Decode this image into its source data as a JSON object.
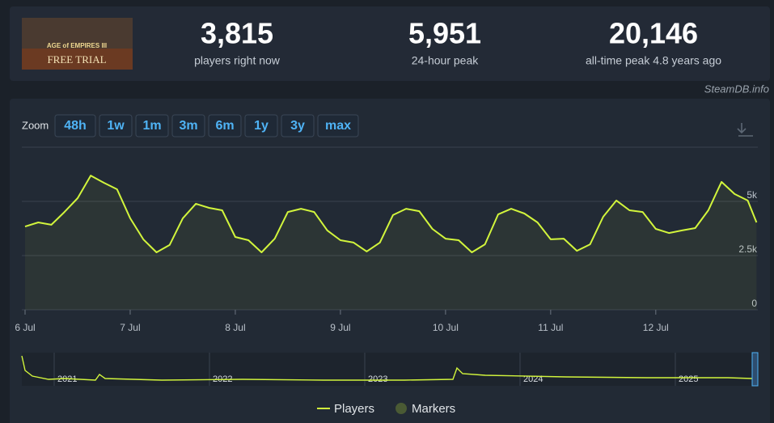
{
  "header": {
    "thumbnail": {
      "title": "AGE of EMPIRES III",
      "caption": "FREE TRIAL"
    },
    "stats": [
      {
        "value": "3,815",
        "label": "players right now"
      },
      {
        "value": "5,951",
        "label": "24-hour peak"
      },
      {
        "value": "20,146",
        "label": "all-time peak 4.8 years ago"
      }
    ],
    "source": "SteamDB.info"
  },
  "zoom": {
    "label": "Zoom",
    "options": [
      "48h",
      "1w",
      "1m",
      "3m",
      "6m",
      "1y",
      "3y",
      "max"
    ],
    "active": "1w"
  },
  "chart_data": {
    "type": "line",
    "x": [
      0,
      3,
      6,
      9,
      12,
      15,
      18,
      21,
      24,
      27,
      30,
      33,
      36,
      39,
      42,
      45,
      48,
      51,
      54,
      57,
      60,
      63,
      66,
      69,
      72,
      75,
      78,
      81,
      84,
      87,
      90,
      93,
      96,
      99,
      102,
      105,
      108,
      111,
      114,
      117,
      120,
      123,
      126,
      129,
      132,
      135,
      138,
      141,
      144,
      147,
      150,
      153,
      156,
      159,
      162,
      165,
      167
    ],
    "series": [
      {
        "name": "Players",
        "color": "#d2f53c",
        "values": [
          3840,
          4030,
          3920,
          4510,
          5150,
          6190,
          5860,
          5560,
          4220,
          3250,
          2650,
          2990,
          4220,
          4890,
          4700,
          4590,
          3360,
          3210,
          2650,
          3280,
          4510,
          4660,
          4510,
          3660,
          3210,
          3100,
          2690,
          3100,
          4370,
          4660,
          4550,
          3730,
          3280,
          3210,
          2650,
          3020,
          4400,
          4660,
          4440,
          4030,
          3250,
          3280,
          2720,
          3020,
          4290,
          5040,
          4590,
          4510,
          3730,
          3540,
          3660,
          3770,
          4590,
          5900,
          5340,
          5040,
          4030
        ]
      }
    ],
    "legend": [
      "Players",
      "Markers"
    ],
    "xlim": [
      -0.74,
      167.3
    ],
    "xticks": [
      {
        "value": 0,
        "label": "6 Jul"
      },
      {
        "value": 24,
        "label": "7 Jul"
      },
      {
        "value": 48,
        "label": "8 Jul"
      },
      {
        "value": 72,
        "label": "9 Jul"
      },
      {
        "value": 96,
        "label": "10 Jul"
      },
      {
        "value": 120,
        "label": "11 Jul"
      },
      {
        "value": 144,
        "label": "12 Jul"
      }
    ],
    "ylim": [
      0,
      7500
    ],
    "yticks": [
      0,
      {
        "value": 2500,
        "label": "2.5k"
      },
      {
        "value": 5000,
        "label": "5k"
      }
    ],
    "grid": true,
    "navigator_years": [
      "2021",
      "2022",
      "2023",
      "2024",
      "2025"
    ]
  }
}
